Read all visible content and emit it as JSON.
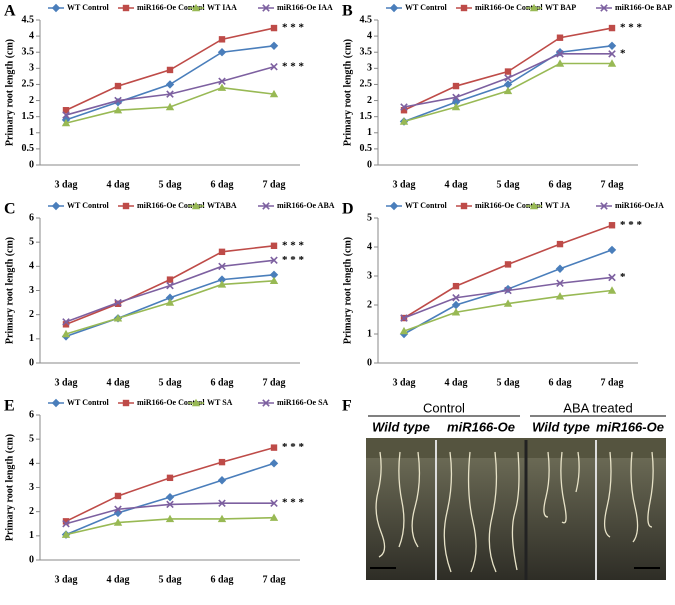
{
  "chart_data": [
    {
      "type": "line",
      "panel_label": "A",
      "y_label": "Primary root length (cm)",
      "categories": [
        "3 dag",
        "4 dag",
        "5 dag",
        "6 dag",
        "7 dag"
      ],
      "series": [
        {
          "name": "WT Control",
          "color": "#4a7ebb",
          "values": [
            1.4,
            1.95,
            2.5,
            3.5,
            3.7
          ]
        },
        {
          "name": "miR166-Oe Control",
          "color": "#be4b48",
          "values": [
            1.7,
            2.45,
            2.95,
            3.9,
            4.25
          ]
        },
        {
          "name": "WT IAA",
          "color": "#98b954",
          "values": [
            1.3,
            1.7,
            1.8,
            2.4,
            2.2
          ]
        },
        {
          "name": "miR166-Oe IAA",
          "color": "#7d60a0",
          "values": [
            1.55,
            2.0,
            2.2,
            2.6,
            3.05
          ]
        }
      ],
      "ylim": [
        0,
        4.5
      ],
      "yticks": [
        0,
        0.5,
        1,
        1.5,
        2,
        2.5,
        3,
        3.5,
        4,
        4.5
      ],
      "annotations": [
        "* * *",
        "* * *"
      ]
    },
    {
      "type": "line",
      "panel_label": "B",
      "y_label": "Primary root length (cm)",
      "categories": [
        "3 dag",
        "4 dag",
        "5 dag",
        "6 dag",
        "7 dag"
      ],
      "series": [
        {
          "name": "WT Control",
          "color": "#4a7ebb",
          "values": [
            1.35,
            1.95,
            2.5,
            3.5,
            3.7
          ]
        },
        {
          "name": "miR166-Oe Control",
          "color": "#be4b48",
          "values": [
            1.7,
            2.45,
            2.9,
            3.95,
            4.25
          ]
        },
        {
          "name": "WT BAP",
          "color": "#98b954",
          "values": [
            1.35,
            1.8,
            2.3,
            3.15,
            3.15
          ]
        },
        {
          "name": "miR166-Oe BAP",
          "color": "#7d60a0",
          "values": [
            1.8,
            2.1,
            2.7,
            3.45,
            3.45
          ]
        }
      ],
      "ylim": [
        0,
        4.5
      ],
      "yticks": [
        0,
        0.5,
        1,
        1.5,
        2,
        2.5,
        3,
        3.5,
        4,
        4.5
      ],
      "annotations": [
        "* * *",
        "*"
      ]
    },
    {
      "type": "line",
      "panel_label": "C",
      "y_label": "Primary root length (cm)",
      "categories": [
        "3 dag",
        "4 dag",
        "5 dag",
        "6 dag",
        "7 dag"
      ],
      "series": [
        {
          "name": "WT Control",
          "color": "#4a7ebb",
          "values": [
            1.1,
            1.85,
            2.7,
            3.45,
            3.65
          ]
        },
        {
          "name": "miR166-Oe Control",
          "color": "#be4b48",
          "values": [
            1.6,
            2.45,
            3.45,
            4.6,
            4.85
          ]
        },
        {
          "name": "WTABA",
          "color": "#98b954",
          "values": [
            1.2,
            1.85,
            2.5,
            3.25,
            3.4
          ]
        },
        {
          "name": "miR166-Oe ABA",
          "color": "#7d60a0",
          "values": [
            1.7,
            2.5,
            3.2,
            4.0,
            4.25
          ]
        }
      ],
      "ylim": [
        0,
        6
      ],
      "yticks": [
        0,
        1,
        2,
        3,
        4,
        5,
        6
      ],
      "annotations": [
        "* * *",
        "* * *"
      ]
    },
    {
      "type": "line",
      "panel_label": "D",
      "y_label": "Primary root length (cm)",
      "categories": [
        "3 dag",
        "4 dag",
        "5 dag",
        "6 dag",
        "7 dag"
      ],
      "series": [
        {
          "name": "WT Control",
          "color": "#4a7ebb",
          "values": [
            1.0,
            2.0,
            2.55,
            3.25,
            3.9
          ]
        },
        {
          "name": "miR166-Oe Control",
          "color": "#be4b48",
          "values": [
            1.55,
            2.65,
            3.4,
            4.1,
            4.75
          ]
        },
        {
          "name": "WT JA",
          "color": "#98b954",
          "values": [
            1.1,
            1.75,
            2.05,
            2.3,
            2.5
          ]
        },
        {
          "name": "miR166-OeJA",
          "color": "#7d60a0",
          "values": [
            1.55,
            2.25,
            2.5,
            2.75,
            2.95
          ]
        }
      ],
      "ylim": [
        0,
        5
      ],
      "yticks": [
        0,
        1,
        2,
        3,
        4,
        5
      ],
      "annotations": [
        "* * *",
        "*"
      ]
    },
    {
      "type": "line",
      "panel_label": "E",
      "y_label": "Primary root length (cm)",
      "categories": [
        "3 dag",
        "4 dag",
        "5 dag",
        "6 dag",
        "7 dag"
      ],
      "series": [
        {
          "name": "WT Control",
          "color": "#4a7ebb",
          "values": [
            1.05,
            1.95,
            2.6,
            3.3,
            4.0
          ]
        },
        {
          "name": "miR166-Oe Control",
          "color": "#be4b48",
          "values": [
            1.6,
            2.65,
            3.4,
            4.05,
            4.65
          ]
        },
        {
          "name": "WT SA",
          "color": "#98b954",
          "values": [
            1.05,
            1.55,
            1.7,
            1.7,
            1.75
          ]
        },
        {
          "name": "miR166-Oe SA",
          "color": "#7d60a0",
          "values": [
            1.5,
            2.1,
            2.3,
            2.35,
            2.35
          ]
        }
      ],
      "ylim": [
        0,
        6
      ],
      "yticks": [
        0,
        1,
        2,
        3,
        4,
        5,
        6
      ],
      "annotations": [
        "* * *",
        "* * *"
      ]
    }
  ],
  "photo": {
    "panel_label": "F",
    "groups": [
      {
        "title": "Control",
        "labels": [
          "Wild type",
          "miR166-Oe"
        ]
      },
      {
        "title": "ABA treated",
        "labels": [
          "Wild type",
          "miR166-Oe"
        ]
      }
    ]
  }
}
